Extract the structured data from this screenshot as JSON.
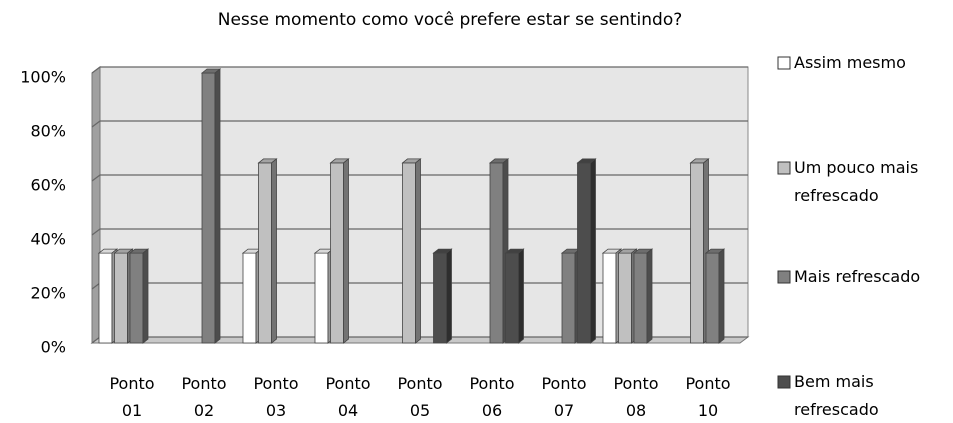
{
  "chart_data": {
    "type": "bar3d",
    "title": "Nesse momento como você prefere estar se sentindo?",
    "categories": [
      "Ponto 01",
      "Ponto 02",
      "Ponto 03",
      "Ponto 04",
      "Ponto 05",
      "Ponto 06",
      "Ponto 07",
      "Ponto 08",
      "Ponto 10"
    ],
    "series": [
      {
        "name": "Assim mesmo",
        "color": "#ffffff",
        "values": [
          33.3,
          0,
          33.3,
          33.3,
          0,
          0,
          0,
          33.3,
          0
        ]
      },
      {
        "name": "Um pouco mais refrescado",
        "color": "#c0c0c0",
        "values": [
          33.3,
          0,
          66.7,
          66.7,
          66.7,
          0,
          0,
          33.3,
          66.7
        ]
      },
      {
        "name": "Mais refrescado",
        "color": "#808080",
        "values": [
          33.3,
          100,
          0,
          0,
          0,
          66.7,
          33.3,
          33.3,
          33.3
        ]
      },
      {
        "name": "Bem mais refrescado",
        "color": "#4d4d4d",
        "values": [
          0,
          0,
          0,
          0,
          33.3,
          33.3,
          66.7,
          0,
          0
        ]
      }
    ],
    "ylim": [
      0,
      100
    ],
    "yticks": [
      {
        "value": 0,
        "label": "0%"
      },
      {
        "value": 20,
        "label": "20%"
      },
      {
        "value": 40,
        "label": "40%"
      },
      {
        "value": 60,
        "label": "60%"
      },
      {
        "value": 80,
        "label": "80%"
      },
      {
        "value": 100,
        "label": "100%"
      }
    ],
    "grid": true,
    "legend": "right"
  }
}
